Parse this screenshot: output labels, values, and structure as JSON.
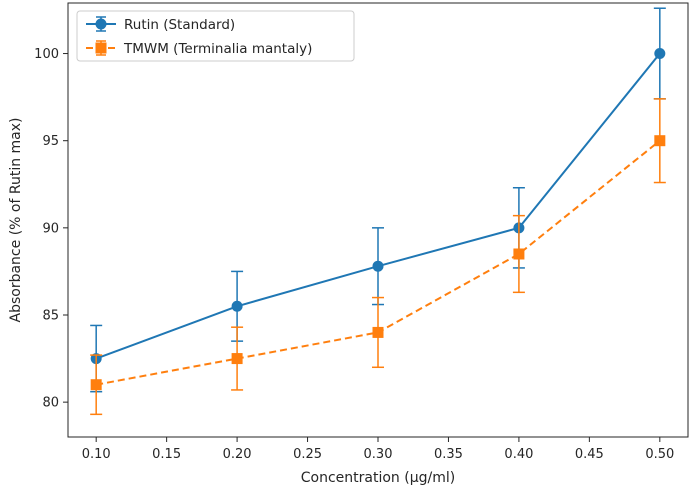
{
  "chart_data": {
    "type": "line",
    "title": "",
    "xlabel": "Concentration (µg/ml)",
    "ylabel": "Absorbance (% of Rutin max)",
    "xlim": [
      0.08,
      0.52
    ],
    "ylim": [
      78,
      102.9
    ],
    "xticks": [
      0.1,
      0.15,
      0.2,
      0.25,
      0.3,
      0.35,
      0.4,
      0.45,
      0.5
    ],
    "xtick_labels": [
      "0.10",
      "0.15",
      "0.20",
      "0.25",
      "0.30",
      "0.35",
      "0.40",
      "0.45",
      "0.50"
    ],
    "yticks": [
      80,
      85,
      90,
      95,
      100
    ],
    "ytick_labels": [
      "80",
      "85",
      "90",
      "95",
      "100"
    ],
    "grid": false,
    "legend_position": "top-left",
    "series": [
      {
        "name": "Rutin (Standard)",
        "color": "#1f77b4",
        "marker": "circle",
        "line_style": "solid",
        "x": [
          0.1,
          0.2,
          0.3,
          0.4,
          0.5
        ],
        "y": [
          82.5,
          85.5,
          87.8,
          90.0,
          100.0
        ],
        "error": [
          1.9,
          2.0,
          2.2,
          2.3,
          2.6
        ]
      },
      {
        "name": "TMWM (Terminalia mantaly)",
        "color": "#ff7f0e",
        "marker": "square",
        "line_style": "dashed",
        "x": [
          0.1,
          0.2,
          0.3,
          0.4,
          0.5
        ],
        "y": [
          81.0,
          82.5,
          84.0,
          88.5,
          95.0
        ],
        "error": [
          1.7,
          1.8,
          2.0,
          2.2,
          2.4
        ]
      }
    ]
  }
}
